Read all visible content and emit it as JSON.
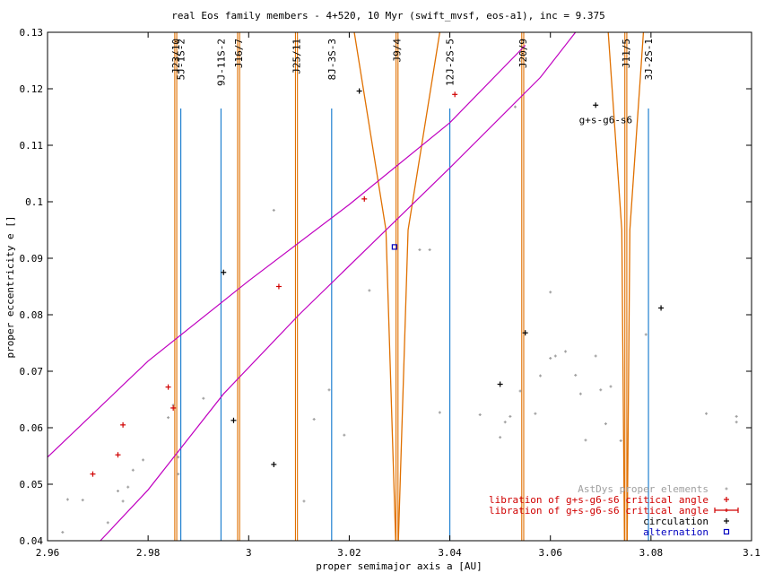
{
  "chart_data": {
    "type": "scatter",
    "title": "real Eos family members - 4+520, 10 Myr (swift_mvsf, eos-a1), inc = 9.375",
    "xlabel": "proper semimajor axis a [AU]",
    "ylabel": "proper eccentricity e []",
    "xlim": [
      2.96,
      3.1
    ],
    "ylim": [
      0.04,
      0.13
    ],
    "xticks": [
      2.96,
      2.98,
      3.0,
      3.02,
      3.04,
      3.06,
      3.08,
      3.1
    ],
    "xtick_labels": [
      "2.96",
      "2.98",
      "3",
      "3.02",
      "3.04",
      "3.06",
      "3.08",
      "3.1"
    ],
    "yticks": [
      0.04,
      0.05,
      0.06,
      0.07,
      0.08,
      0.09,
      0.1,
      0.11,
      0.12,
      0.13
    ],
    "ytick_labels": [
      "0.04",
      "0.05",
      "0.06",
      "0.07",
      "0.08",
      "0.09",
      "0.1",
      "0.11",
      "0.12",
      "0.13"
    ],
    "grid": false,
    "legend_position": "bottom-right",
    "colors": {
      "proper": "#a0a0a0",
      "libration": "#d00000",
      "circulation": "#000000",
      "alternation": "#0000c0",
      "mean_motion": "#e07000",
      "three_body": "#2080d0",
      "secular": "#c000c0"
    },
    "legend": [
      {
        "key": "proper",
        "label": "AstDys proper elements",
        "marker": "dot"
      },
      {
        "key": "libration",
        "label": "libration of g+s-g6-s6 critical angle",
        "marker": "plus"
      },
      {
        "key": "libration_err",
        "label": "libration of g+s-g6-s6 critical angle",
        "marker": "errbar"
      },
      {
        "key": "circulation",
        "label": "circulation",
        "marker": "plus"
      },
      {
        "key": "alternation",
        "label": "alternation",
        "marker": "square"
      }
    ],
    "secular_label": "g+s-g6-s6",
    "secular_label_pos": [
      3.071,
      0.1145
    ],
    "resonances": [
      {
        "label": "J23/10",
        "a": 2.9855,
        "kind": "mean_motion"
      },
      {
        "label": "5J-1S-2",
        "a": 2.9865,
        "kind": "three_body"
      },
      {
        "label": "9J-11S-2",
        "a": 2.9945,
        "kind": "three_body"
      },
      {
        "label": "J16/7",
        "a": 2.998,
        "kind": "mean_motion"
      },
      {
        "label": "J25/11",
        "a": 3.0095,
        "kind": "mean_motion"
      },
      {
        "label": "8J-3S-3",
        "a": 3.0165,
        "kind": "three_body"
      },
      {
        "label": "J9/4",
        "a": 3.0295,
        "kind": "mean_motion"
      },
      {
        "label": "12J-2S-5",
        "a": 3.04,
        "kind": "three_body"
      },
      {
        "label": "J20/9",
        "a": 3.0545,
        "kind": "mean_motion"
      },
      {
        "label": "J11/5",
        "a": 3.075,
        "kind": "mean_motion"
      },
      {
        "label": "3J-2S-1",
        "a": 3.0795,
        "kind": "three_body"
      }
    ],
    "secular_upper": [
      [
        2.96,
        0.0548
      ],
      [
        2.98,
        0.0718
      ],
      [
        3.0,
        0.086
      ],
      [
        3.02,
        0.0995
      ],
      [
        3.04,
        0.114
      ],
      [
        3.055,
        0.1277
      ]
    ],
    "secular_lower": [
      [
        2.9705,
        0.04
      ],
      [
        2.98,
        0.049
      ],
      [
        2.995,
        0.066
      ],
      [
        3.01,
        0.08
      ],
      [
        3.025,
        0.093
      ],
      [
        3.04,
        0.106
      ],
      [
        3.058,
        0.122
      ],
      [
        3.065,
        0.13
      ]
    ],
    "series": [
      {
        "key": "proper",
        "points": [
          [
            2.963,
            0.0415
          ],
          [
            2.964,
            0.0473
          ],
          [
            2.967,
            0.0472
          ],
          [
            2.972,
            0.0432
          ],
          [
            2.974,
            0.0488
          ],
          [
            2.975,
            0.047
          ],
          [
            2.976,
            0.0495
          ],
          [
            2.977,
            0.0525
          ],
          [
            2.979,
            0.0543
          ],
          [
            2.984,
            0.0618
          ],
          [
            2.985,
            0.064
          ],
          [
            2.986,
            0.0548
          ],
          [
            2.986,
            0.0518
          ],
          [
            2.991,
            0.0652
          ],
          [
            3.005,
            0.0985
          ],
          [
            3.011,
            0.047
          ],
          [
            3.013,
            0.0615
          ],
          [
            3.016,
            0.0667
          ],
          [
            3.019,
            0.0587
          ],
          [
            3.024,
            0.0843
          ],
          [
            3.034,
            0.0915
          ],
          [
            3.036,
            0.0915
          ],
          [
            3.038,
            0.0627
          ],
          [
            3.046,
            0.0623
          ],
          [
            3.05,
            0.0583
          ],
          [
            3.051,
            0.061
          ],
          [
            3.052,
            0.062
          ],
          [
            3.053,
            0.1168
          ],
          [
            3.054,
            0.0665
          ],
          [
            3.057,
            0.0625
          ],
          [
            3.058,
            0.0692
          ],
          [
            3.06,
            0.084
          ],
          [
            3.06,
            0.0723
          ],
          [
            3.061,
            0.0727
          ],
          [
            3.063,
            0.0735
          ],
          [
            3.065,
            0.0693
          ],
          [
            3.066,
            0.066
          ],
          [
            3.067,
            0.0578
          ],
          [
            3.069,
            0.0727
          ],
          [
            3.07,
            0.0667
          ],
          [
            3.071,
            0.0607
          ],
          [
            3.072,
            0.0673
          ],
          [
            3.074,
            0.0577
          ],
          [
            3.079,
            0.0765
          ],
          [
            3.091,
            0.0625
          ],
          [
            3.097,
            0.062
          ],
          [
            3.097,
            0.061
          ]
        ]
      },
      {
        "key": "libration",
        "points": [
          [
            2.969,
            0.0518
          ],
          [
            2.974,
            0.0552
          ],
          [
            2.975,
            0.0605
          ],
          [
            2.984,
            0.0672
          ],
          [
            2.985,
            0.0635
          ],
          [
            3.006,
            0.085
          ],
          [
            3.023,
            0.1005
          ],
          [
            3.041,
            0.119
          ]
        ]
      },
      {
        "key": "circulation",
        "points": [
          [
            2.995,
            0.0875
          ],
          [
            2.997,
            0.0613
          ],
          [
            3.005,
            0.0535
          ],
          [
            3.022,
            0.1196
          ],
          [
            3.05,
            0.0677
          ],
          [
            3.055,
            0.0768
          ],
          [
            3.069,
            0.1171
          ],
          [
            3.082,
            0.0812
          ]
        ]
      },
      {
        "key": "alternation",
        "points": [
          [
            3.029,
            0.092
          ]
        ]
      }
    ]
  }
}
